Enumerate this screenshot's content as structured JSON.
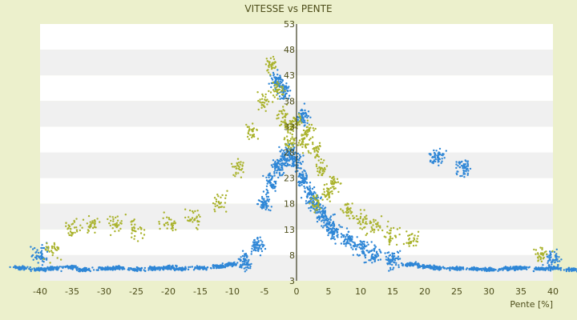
{
  "chart_data": {
    "type": "scatter",
    "title": "VITESSE vs PENTE",
    "xlabel": "Pente [%]",
    "ylabel": "",
    "xlim": [
      -40,
      40
    ],
    "ylim": [
      3,
      53
    ],
    "x_ticks": [
      "-40",
      "-35",
      "-30",
      "-25",
      "-20",
      "-15",
      "-10",
      "-5",
      "0",
      "5",
      "10",
      "15",
      "20",
      "25",
      "30",
      "35",
      "40"
    ],
    "y_ticks": [
      "53",
      "48",
      "43",
      "38",
      "33",
      "28",
      "23",
      "18",
      "13",
      "8",
      "3"
    ],
    "grid": "horizontal alternating bands",
    "legend": "none",
    "colors": {
      "background": "#ecf0cc",
      "band_light": "#ffffff",
      "band_dark": "#f0f0f0",
      "zero_axis": "#3b3b1e",
      "series_blue": "#2e86d6",
      "series_olive": "#a9b22b",
      "text": "#4d4d1a"
    },
    "series": [
      {
        "color": "#2e86d6",
        "description_points": [
          [
            -43,
            5.5
          ],
          [
            -40,
            5.2
          ],
          [
            -38,
            5.4
          ],
          [
            -35,
            5.6
          ],
          [
            -33,
            5.1
          ],
          [
            -30,
            5.3
          ],
          [
            -28,
            5.5
          ],
          [
            -25,
            5.2
          ],
          [
            -22,
            5.4
          ],
          [
            -20,
            5.6
          ],
          [
            -18,
            5.3
          ],
          [
            -15,
            5.5
          ],
          [
            -12,
            5.8
          ],
          [
            -10,
            6.2
          ],
          [
            -8,
            7
          ],
          [
            -6,
            10
          ],
          [
            -5,
            18
          ],
          [
            -4,
            22
          ],
          [
            -3,
            25
          ],
          [
            -2,
            27
          ],
          [
            -1,
            28
          ],
          [
            0,
            26
          ],
          [
            1,
            23
          ],
          [
            2,
            20
          ],
          [
            3,
            18
          ],
          [
            4,
            16
          ],
          [
            5,
            14
          ],
          [
            6,
            12.5
          ],
          [
            8,
            11
          ],
          [
            10,
            9.5
          ],
          [
            12,
            8
          ],
          [
            15,
            7
          ],
          [
            18,
            6.2
          ],
          [
            20,
            5.8
          ],
          [
            22,
            5.5
          ],
          [
            25,
            5.4
          ],
          [
            28,
            5.3
          ],
          [
            30,
            5.2
          ],
          [
            33,
            5.4
          ],
          [
            35,
            5.5
          ],
          [
            38,
            5.3
          ],
          [
            40,
            5.4
          ],
          [
            43,
            5.2
          ],
          [
            22,
            27
          ],
          [
            26,
            25
          ],
          [
            -40,
            8
          ],
          [
            40,
            7.5
          ],
          [
            -2,
            40
          ],
          [
            1,
            35
          ],
          [
            -3,
            42
          ]
        ]
      },
      {
        "color": "#a9b22b",
        "description_points": [
          [
            -35,
            13
          ],
          [
            -32,
            14
          ],
          [
            -28,
            14
          ],
          [
            -25,
            13
          ],
          [
            -20,
            14
          ],
          [
            -16,
            15
          ],
          [
            -12,
            18
          ],
          [
            -9,
            25
          ],
          [
            -7,
            32
          ],
          [
            -5,
            38
          ],
          [
            -4,
            45
          ],
          [
            -2,
            35
          ],
          [
            -1,
            33
          ],
          [
            0,
            34
          ],
          [
            1,
            30
          ],
          [
            2,
            32
          ],
          [
            3,
            28
          ],
          [
            4,
            25
          ],
          [
            5,
            20
          ],
          [
            6,
            22
          ],
          [
            8,
            17
          ],
          [
            10,
            15
          ],
          [
            12,
            14
          ],
          [
            15,
            12
          ],
          [
            18,
            11
          ],
          [
            -38,
            9
          ],
          [
            38,
            8
          ],
          [
            -3,
            40
          ],
          [
            -1,
            30
          ],
          [
            3,
            18
          ]
        ]
      }
    ]
  }
}
